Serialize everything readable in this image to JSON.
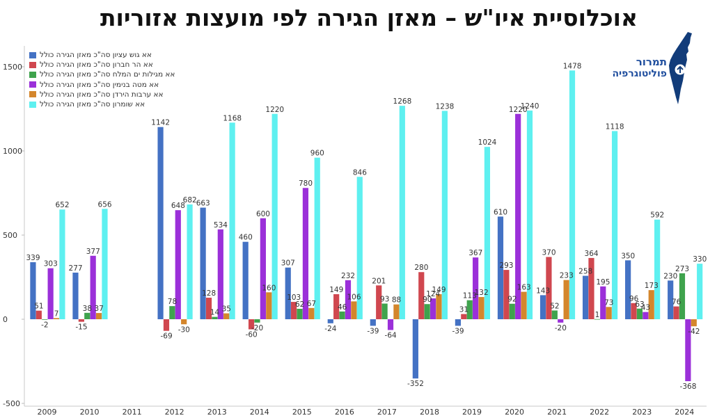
{
  "title": "אוכלוסיית איו\"ש – מאזן הגירה לפי מועצות אזוריות",
  "logo": {
    "line1": "תמרור",
    "line2": "פוליטוגרפיה"
  },
  "chart_data": {
    "type": "bar",
    "categories": [
      "2009",
      "2010",
      "2011",
      "2012",
      "2013",
      "2014",
      "2015",
      "2016",
      "2017",
      "2018",
      "2019",
      "2020",
      "2021",
      "2022",
      "2023",
      "2024"
    ],
    "ylim": [
      -500,
      1600
    ],
    "yticks": [
      -500,
      0,
      500,
      1000,
      1500
    ],
    "ytick_labels": [
      "-500",
      "0",
      "500",
      "1000",
      "1500"
    ],
    "series": [
      {
        "name": "אא גוש עציון סה\"כ מאזן הגירה כולל",
        "color": "#4472c4",
        "values": [
          339,
          277,
          null,
          1142,
          663,
          460,
          307,
          -24,
          -39,
          -352,
          -39,
          610,
          143,
          258,
          350,
          230
        ]
      },
      {
        "name": "אא הר חברון סה\"כ מאזן הגירה כולל",
        "color": "#d0474f",
        "values": [
          51,
          -15,
          null,
          -69,
          128,
          -60,
          103,
          149,
          201,
          280,
          31,
          293,
          370,
          364,
          96,
          76
        ]
      },
      {
        "name": "אא מגילות ים המלח סה\"כ מאזן הגירה כולל",
        "color": "#3fa34d",
        "values": [
          -2,
          38,
          null,
          78,
          14,
          -20,
          62,
          46,
          93,
          90,
          113,
          92,
          52,
          1,
          63,
          273
        ]
      },
      {
        "name": "אא מטה בנימין סה\"כ מאזן הגירה כולל",
        "color": "#9b30d9",
        "values": [
          303,
          377,
          null,
          648,
          534,
          600,
          780,
          232,
          -64,
          124,
          367,
          1220,
          -20,
          195,
          43,
          -368
        ]
      },
      {
        "name": "אא ערבות הירדן סה\"כ מאזן הגירה כולל",
        "color": "#d4862c",
        "values": [
          7,
          37,
          null,
          -30,
          35,
          160,
          67,
          106,
          88,
          149,
          132,
          163,
          233,
          73,
          173,
          -42
        ]
      },
      {
        "name": "אא שומרון סה\"כ מאזן הגירה כולל",
        "color": "#5ef0f0",
        "values": [
          652,
          656,
          null,
          682,
          1168,
          1220,
          960,
          846,
          1268,
          1238,
          1024,
          1240,
          1478,
          1118,
          592,
          330
        ]
      }
    ],
    "legend_position": "top-left",
    "grid": false
  }
}
